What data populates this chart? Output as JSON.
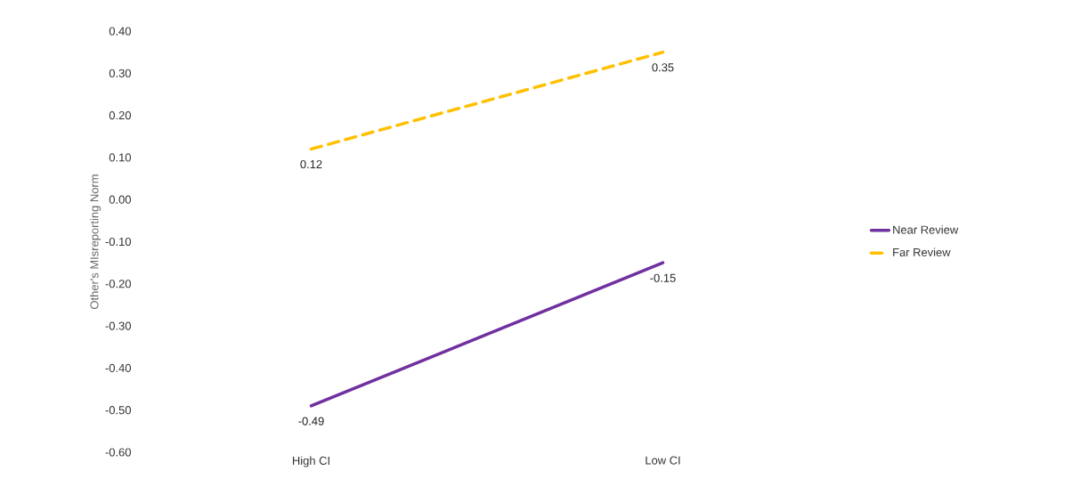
{
  "chart_data": {
    "type": "line",
    "ylabel": "Other's MIsreporting Norm",
    "categories": [
      "High CI",
      "Low CI"
    ],
    "series": [
      {
        "name": "Near Review",
        "color": "#7030a0",
        "line_style": "solid",
        "values": [
          -0.49,
          -0.15
        ],
        "value_labels": [
          "-0.49",
          "-0.15"
        ]
      },
      {
        "name": "Far Review",
        "color": "#ffc000",
        "line_style": "dashed",
        "values": [
          0.12,
          0.35
        ],
        "value_labels": [
          "0.12",
          "0.35"
        ]
      }
    ],
    "ylim": [
      -0.6,
      0.4
    ],
    "yticks": [
      {
        "value": -0.6,
        "label": "-0.60"
      },
      {
        "value": -0.5,
        "label": "-0.50"
      },
      {
        "value": -0.4,
        "label": "-0.40"
      },
      {
        "value": -0.3,
        "label": "-0.30"
      },
      {
        "value": -0.2,
        "label": "-0.20"
      },
      {
        "value": -0.1,
        "label": "-0.10"
      },
      {
        "value": 0,
        "label": "0.00"
      },
      {
        "value": 0.1,
        "label": "0.10"
      },
      {
        "value": 0.2,
        "label": "0.20"
      },
      {
        "value": 0.3,
        "label": "0.30"
      },
      {
        "value": 0.4,
        "label": "0.40"
      }
    ],
    "grid": false,
    "legend": "right",
    "marker": "none"
  }
}
